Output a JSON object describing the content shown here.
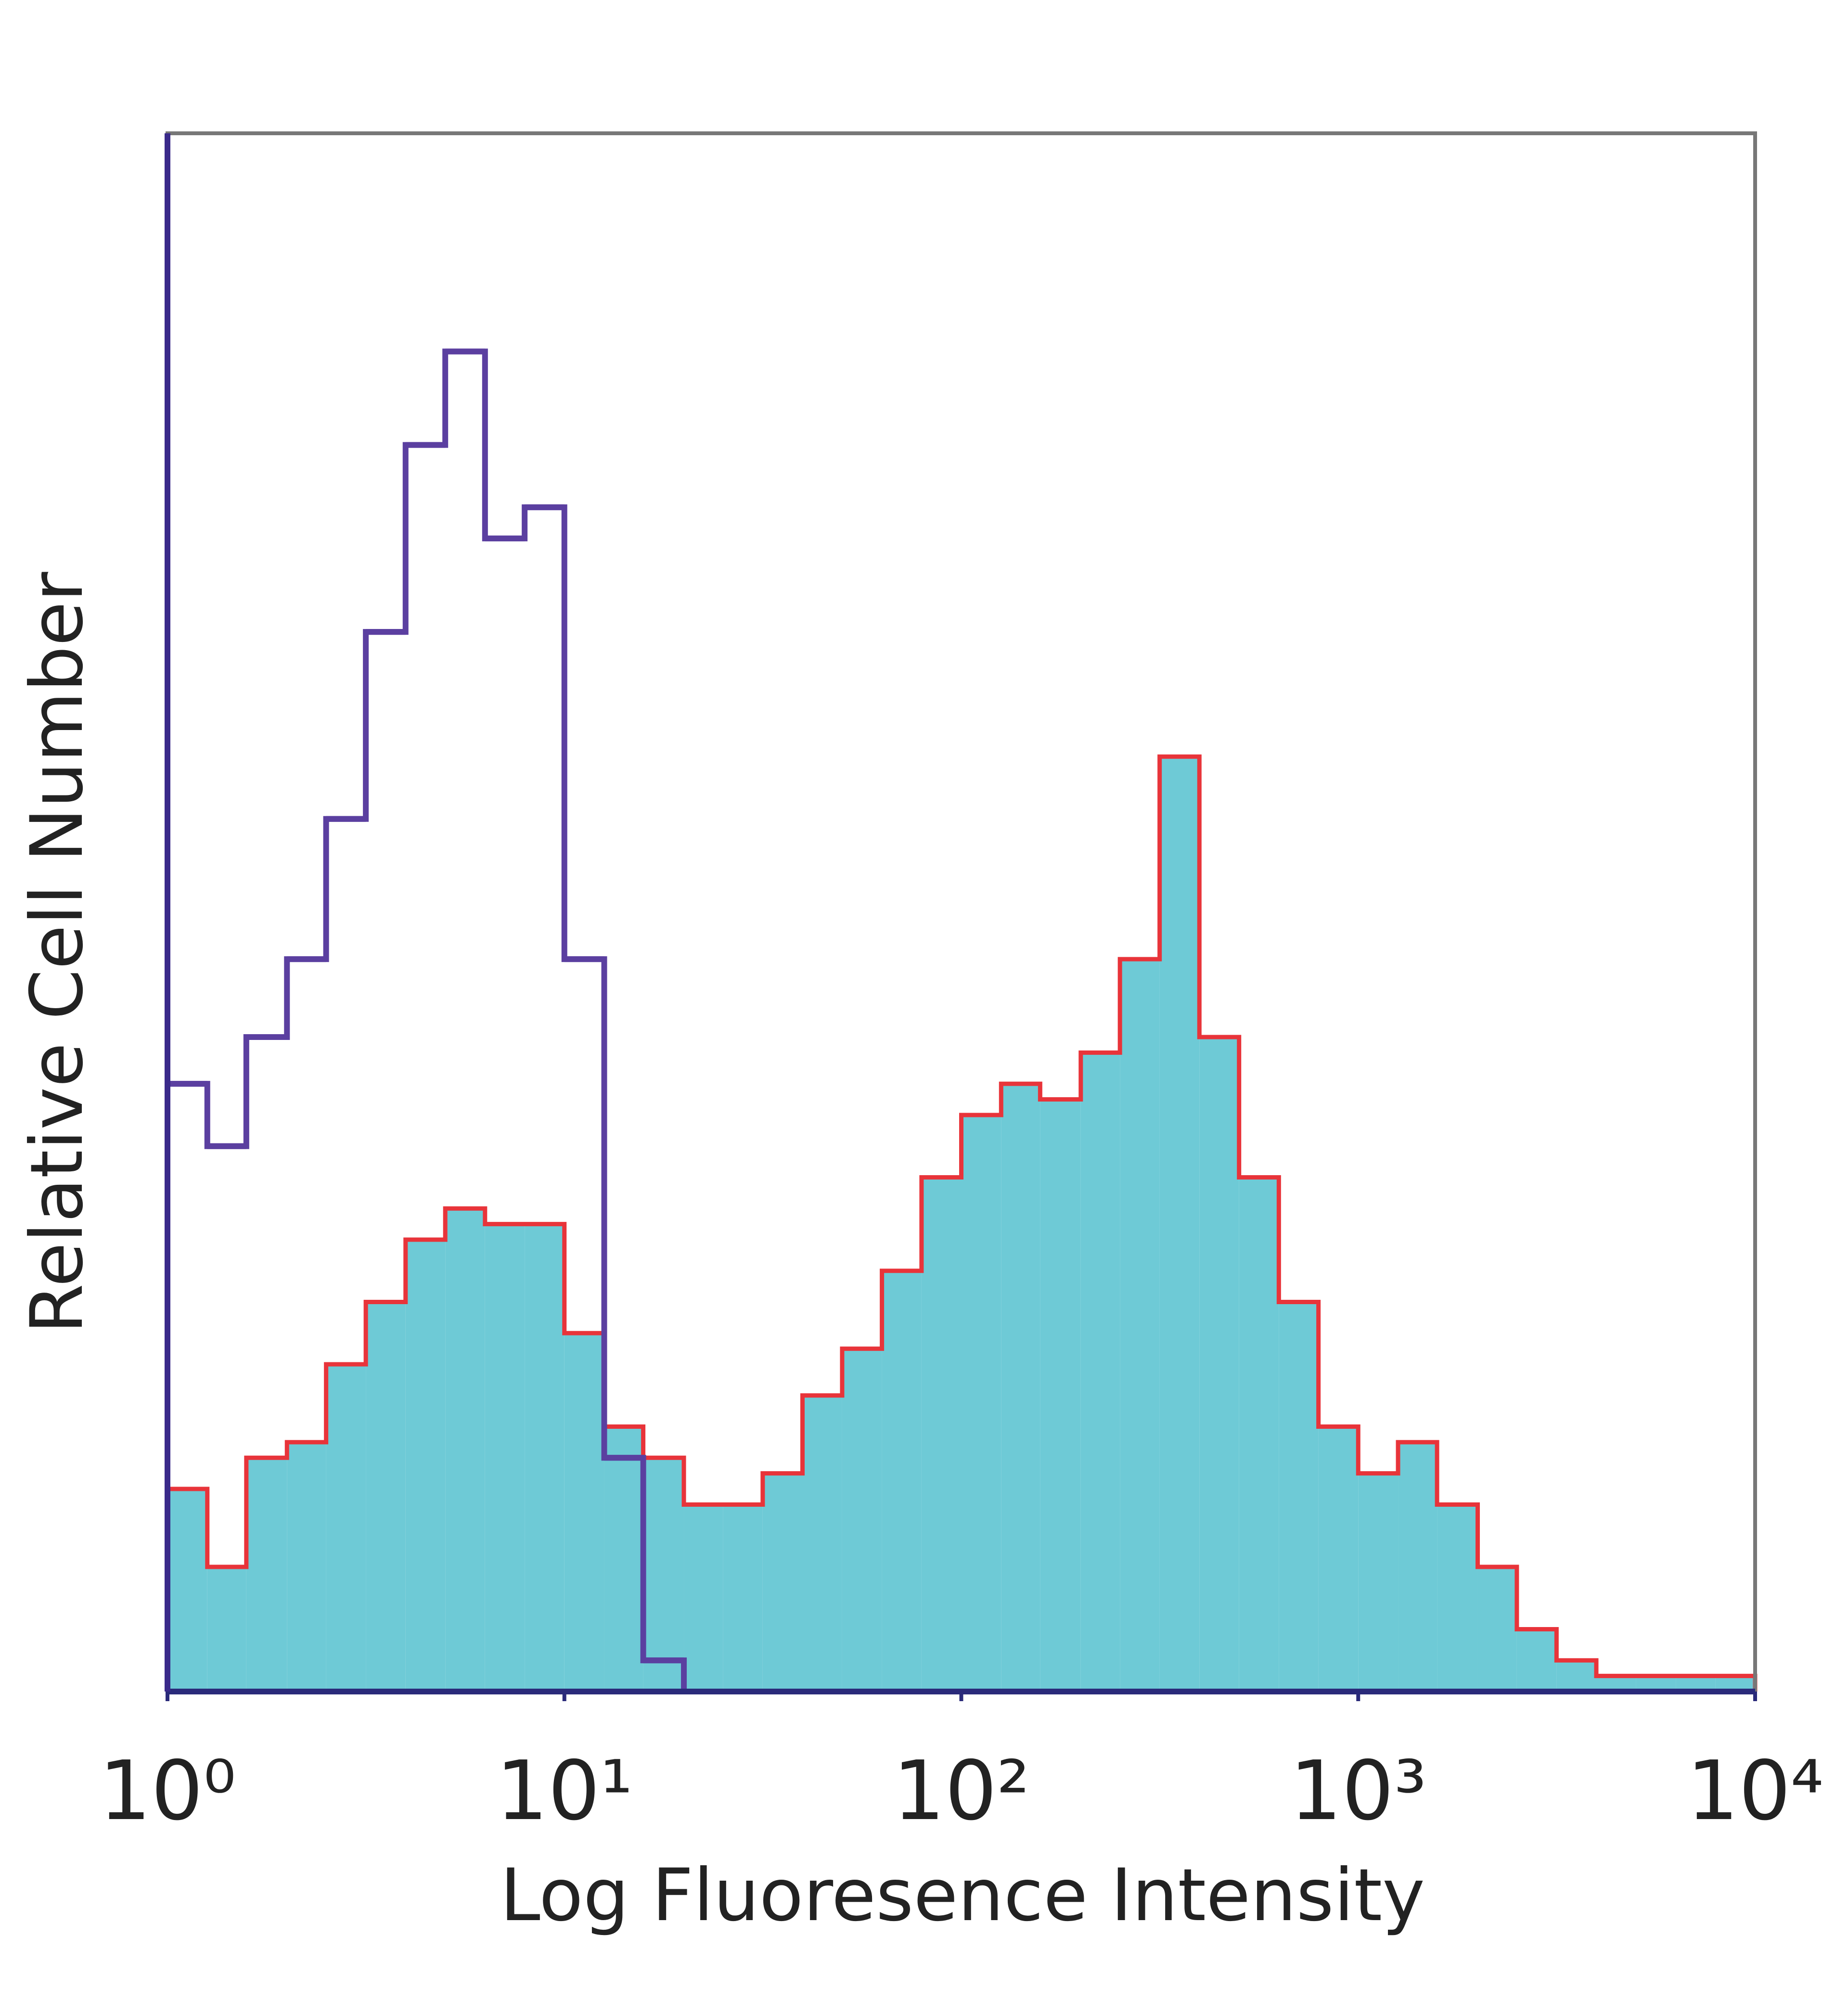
{
  "chart_data": {
    "type": "histogram",
    "xlabel": "Log Fluoresence Intensity",
    "ylabel": "Relative Cell Number",
    "log_x": true,
    "xlim": [
      1,
      10000
    ],
    "xticks": [
      {
        "value": 1,
        "label": "10⁰"
      },
      {
        "value": 10,
        "label": "10¹"
      },
      {
        "value": 100,
        "label": "10²"
      },
      {
        "value": 1000,
        "label": "10³"
      },
      {
        "value": 10000,
        "label": "10⁴"
      }
    ],
    "ylim": [
      0,
      100
    ],
    "bins": [
      1,
      1.26,
      1.58,
      2,
      2.51,
      3.16,
      3.98,
      5.01,
      6.31,
      7.94,
      10,
      12.6,
      15.8,
      20,
      25.1,
      31.6,
      39.8,
      50.1,
      63.1,
      79.4,
      100,
      126,
      158,
      200,
      251,
      316,
      398,
      501,
      631,
      794,
      1000,
      1260,
      1580,
      2000,
      2510,
      3160,
      3980,
      5010,
      6310,
      7940,
      10000
    ],
    "series": [
      {
        "color": "#5b3fa0",
        "filled": false,
        "values": [
          39,
          35,
          42,
          47,
          56,
          68,
          80,
          86,
          74,
          76,
          47,
          15,
          2,
          0,
          0,
          0,
          0,
          0,
          0,
          0,
          0,
          0,
          0,
          0,
          0,
          0,
          0,
          0,
          0,
          0,
          0,
          0,
          0,
          0,
          0,
          0,
          0,
          0,
          0,
          0
        ]
      },
      {
        "color": "#6ecad6",
        "edge_color": "#e8343a",
        "filled": true,
        "values": [
          13,
          8,
          15,
          16,
          21,
          25,
          29,
          31,
          30,
          30,
          23,
          17,
          15,
          12,
          12,
          14,
          19,
          22,
          27,
          33,
          37,
          39,
          38,
          41,
          47,
          60,
          42,
          33,
          25,
          17,
          14,
          16,
          12,
          8,
          4,
          2,
          1,
          1,
          1,
          1
        ]
      }
    ]
  }
}
